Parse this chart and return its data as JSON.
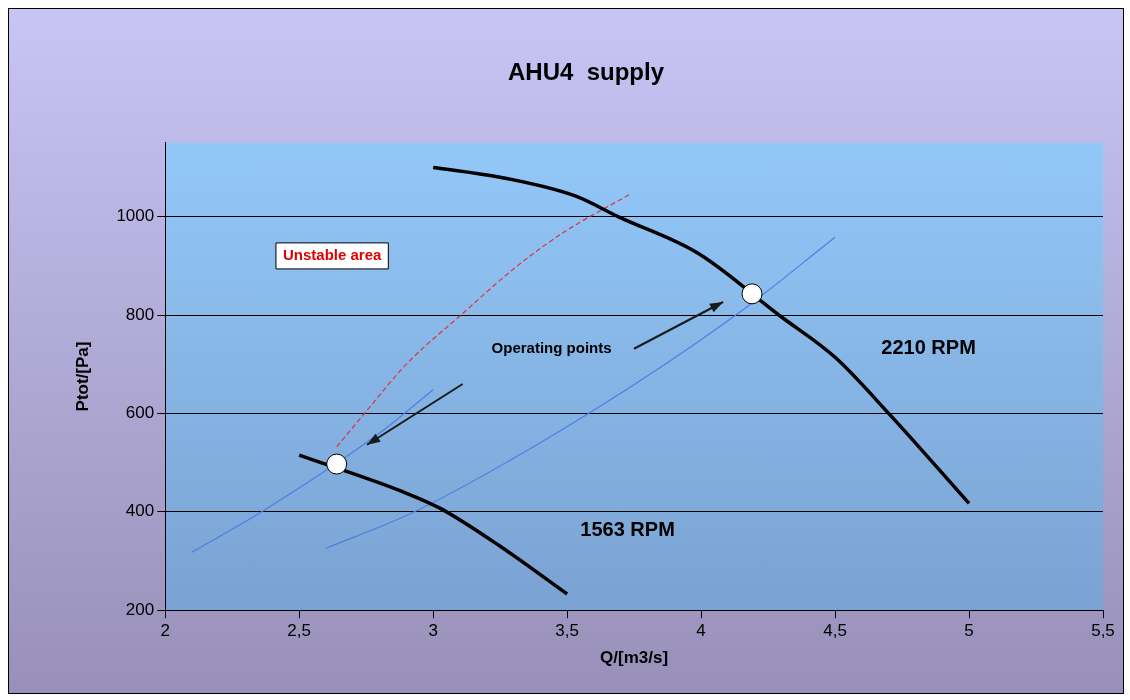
{
  "chart_data": {
    "type": "line",
    "title": "AHU4  supply",
    "xlabel": "Q/[m3/s]",
    "ylabel": "Ptot/[Pa]",
    "xlim": [
      2,
      5.5
    ],
    "xticks": [
      2,
      {
        "value": 2.5,
        "label": "2,5"
      },
      3,
      {
        "value": 3.5,
        "label": "3,5"
      },
      4,
      {
        "value": 4.5,
        "label": "4,5"
      },
      5,
      {
        "value": 5.5,
        "label": "5,5"
      }
    ],
    "ylim": [
      200,
      1150
    ],
    "yticks": [
      200,
      400,
      600,
      800,
      1000
    ],
    "grid": "y",
    "legend": false,
    "marker": "none",
    "series": [
      {
        "color": "#000000",
        "x": [
          2.5,
          2.89,
          3.03,
          3.25,
          3.5
        ],
        "values": [
          515,
          440,
          406,
          330,
          233
        ]
      },
      {
        "color": "#000000",
        "x": [
          3.0,
          3.25,
          3.53,
          3.69,
          3.99,
          4.29,
          4.5,
          4.7,
          5.0
        ],
        "values": [
          1100,
          1080,
          1042,
          1000,
          925,
          800,
          714,
          600,
          417
        ]
      },
      {
        "color": "#4f7fe0",
        "x": [
          2.1,
          2.36,
          2.8,
          3.0
        ],
        "values": [
          318,
          400,
          560,
          648
        ]
      },
      {
        "color": "#4f7fe0",
        "x": [
          2.6,
          2.93,
          3.58,
          4.13,
          4.5
        ],
        "values": [
          326,
          400,
          600,
          800,
          958
        ]
      },
      {
        "color": "#e03040",
        "line_style": "dashed",
        "x": [
          2.64,
          2.75,
          2.9,
          3.11,
          3.31,
          3.49,
          3.74
        ],
        "values": [
          532,
          604,
          700,
          803,
          898,
          969,
          1047
        ]
      },
      {
        "type": "scatter",
        "color": "#ffffff",
        "marker": "circle",
        "x": [
          2.64,
          4.19
        ],
        "values": [
          497,
          843
        ]
      }
    ],
    "annotations": [
      "Unstable area",
      "Operating points",
      "2210 RPM",
      "1563 RPM"
    ]
  }
}
